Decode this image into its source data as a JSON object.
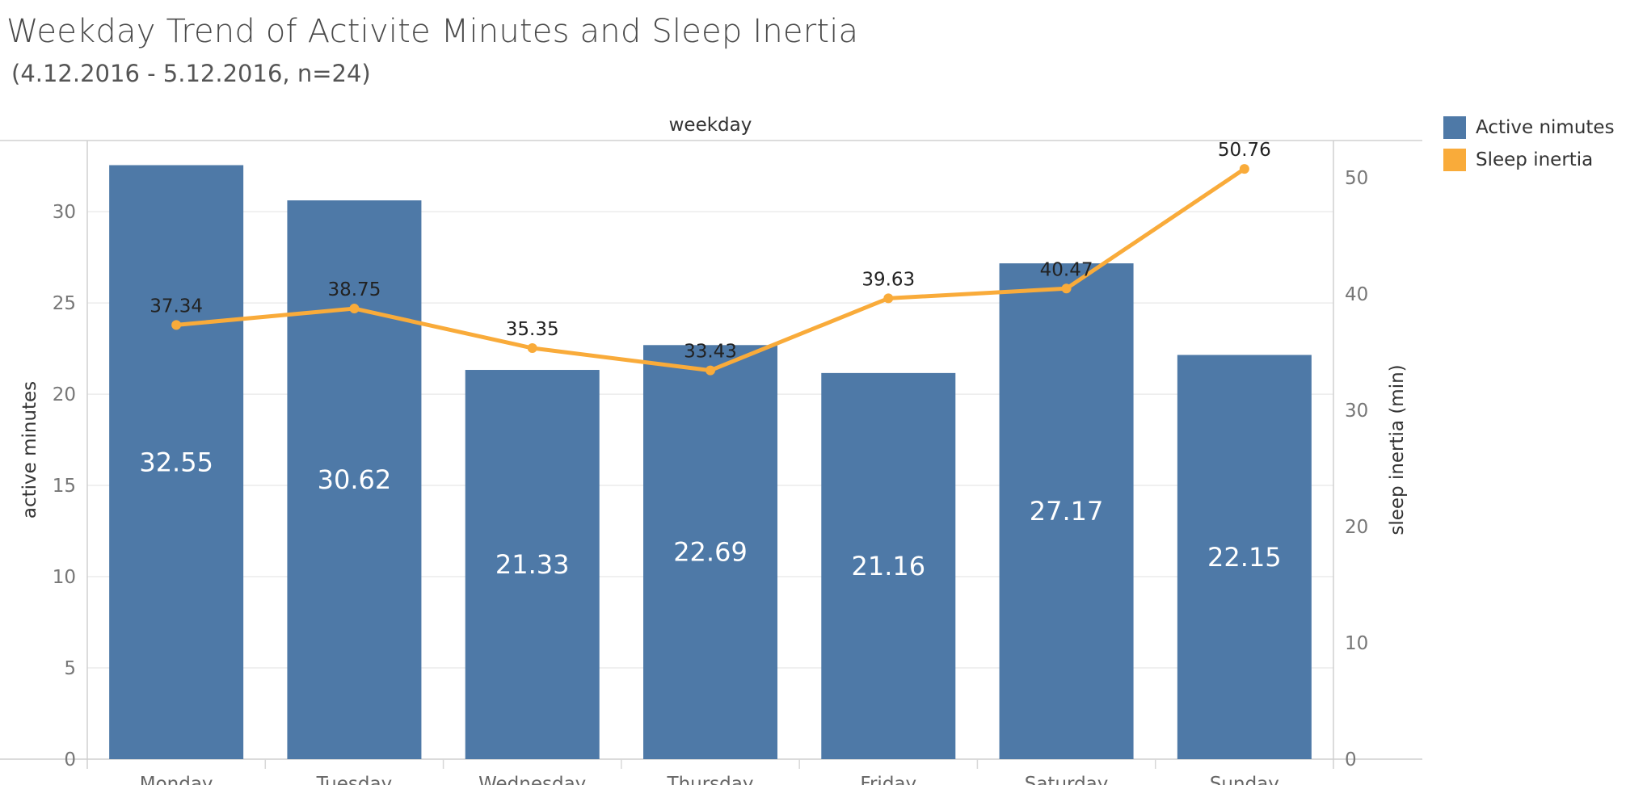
{
  "title": "Weekday Trend of Activite Minutes and Sleep Inertia",
  "subtitle": "(4.12.2016 - 5.12.2016, n=24)",
  "legend": [
    {
      "label": "Active nimutes",
      "color": "#4e79a7"
    },
    {
      "label": "Sleep inertia",
      "color": "#f9ab3a"
    }
  ],
  "chart_data": {
    "type": "bar",
    "title": "Weekday Trend of Activite Minutes and Sleep Inertia",
    "subtitle": "(4.12.2016 - 5.12.2016, n=24)",
    "xlabel": "weekday",
    "ylabel": "active minutes",
    "y2label": "sleep inertia (min)",
    "categories": [
      "Monday",
      "Tuesday",
      "Wednesday",
      "Thursday",
      "Friday",
      "Saturday",
      "Sunday"
    ],
    "series": [
      {
        "name": "Active nimutes",
        "type": "bar",
        "axis": "left",
        "color": "#4e79a7",
        "values": [
          32.55,
          30.62,
          21.33,
          22.69,
          21.16,
          27.17,
          22.15
        ]
      },
      {
        "name": "Sleep inertia",
        "type": "line",
        "axis": "right",
        "color": "#f9ab3a",
        "values": [
          37.34,
          38.75,
          35.35,
          33.43,
          39.63,
          40.47,
          50.76
        ]
      }
    ],
    "ylim": [
      0,
      33.9
    ],
    "y2lim": [
      0,
      53.2
    ],
    "yticks": [
      0,
      5,
      10,
      15,
      20,
      25,
      30
    ],
    "y2ticks": [
      0,
      10,
      20,
      30,
      40,
      50
    ],
    "grid": true,
    "legend_position": "top-right"
  }
}
